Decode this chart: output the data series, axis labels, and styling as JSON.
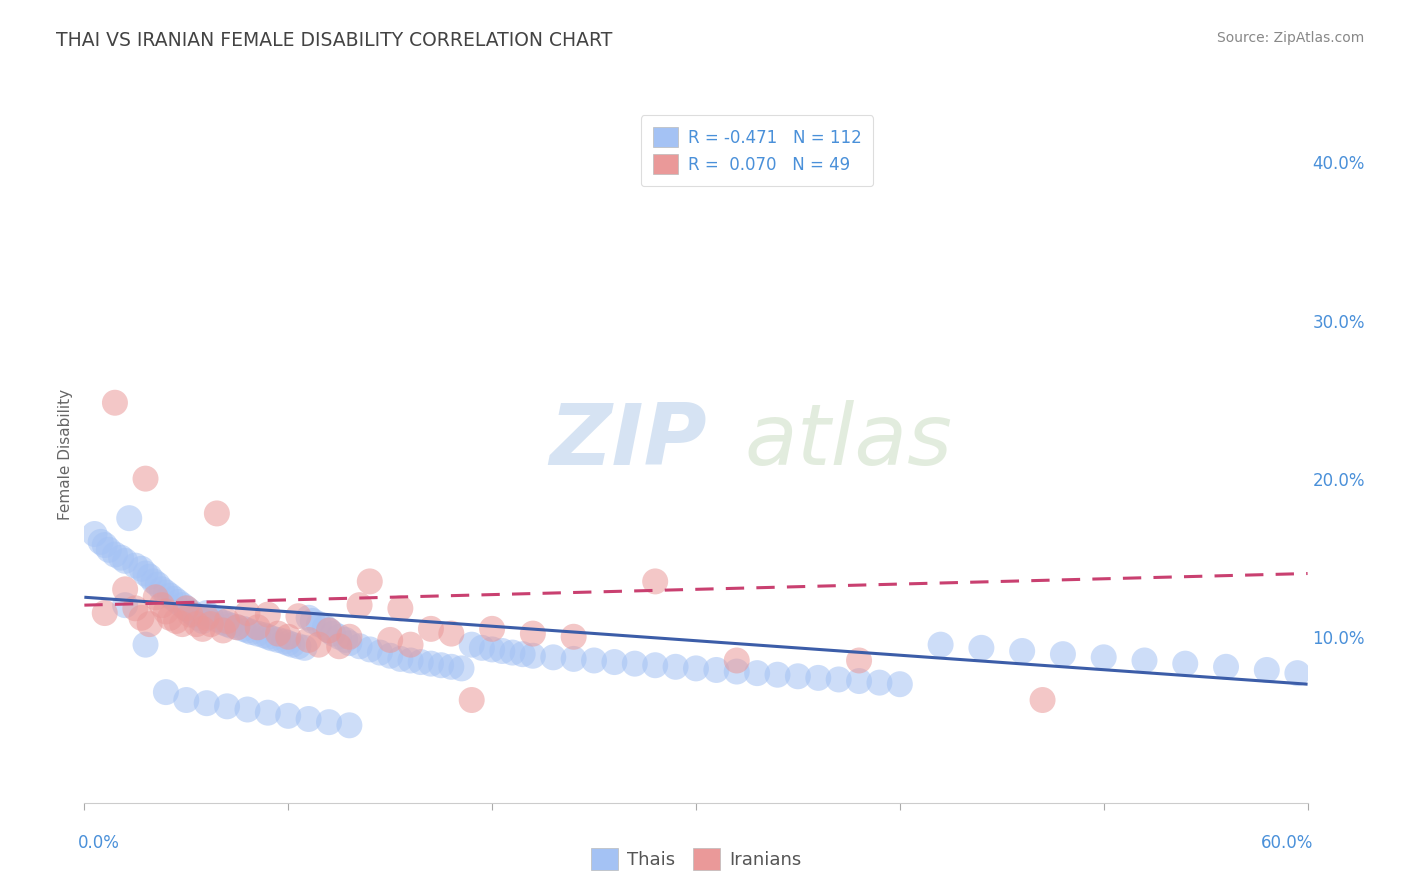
{
  "title": "THAI VS IRANIAN FEMALE DISABILITY CORRELATION CHART",
  "source_text": "Source: ZipAtlas.com",
  "ylabel": "Female Disability",
  "legend_labels": [
    "Thais",
    "Iranians"
  ],
  "thai_R": -0.471,
  "thai_N": 112,
  "iranian_R": 0.07,
  "iranian_N": 49,
  "xlim": [
    0.0,
    0.6
  ],
  "ylim": [
    -0.005,
    0.435
  ],
  "xtick_positions": [
    0.0,
    0.6
  ],
  "xtick_labels": [
    "0.0%",
    "60.0%"
  ],
  "yticks_right": [
    0.1,
    0.2,
    0.3,
    0.4
  ],
  "ytick_labels_right": [
    "10.0%",
    "20.0%",
    "30.0%",
    "40.0%"
  ],
  "thai_color": "#a4c2f4",
  "iranian_color": "#ea9999",
  "thai_line_color": "#3c5da8",
  "iranian_line_color": "#c94070",
  "background_color": "#ffffff",
  "grid_color": "#cccccc",
  "watermark_zip": "ZIP",
  "watermark_atlas": "atlas",
  "title_color": "#434343",
  "source_color": "#888888",
  "axis_label_color": "#666666",
  "tick_label_color": "#4a90d9",
  "bottom_legend_label_color": "#555555",
  "thai_scatter_x": [
    0.005,
    0.008,
    0.01,
    0.012,
    0.015,
    0.018,
    0.02,
    0.022,
    0.025,
    0.028,
    0.03,
    0.032,
    0.034,
    0.036,
    0.038,
    0.04,
    0.042,
    0.044,
    0.046,
    0.048,
    0.05,
    0.052,
    0.054,
    0.056,
    0.058,
    0.06,
    0.062,
    0.065,
    0.068,
    0.07,
    0.072,
    0.075,
    0.078,
    0.08,
    0.082,
    0.085,
    0.088,
    0.09,
    0.092,
    0.095,
    0.098,
    0.1,
    0.102,
    0.105,
    0.108,
    0.11,
    0.112,
    0.115,
    0.118,
    0.12,
    0.122,
    0.125,
    0.128,
    0.13,
    0.135,
    0.14,
    0.145,
    0.15,
    0.155,
    0.16,
    0.165,
    0.17,
    0.175,
    0.18,
    0.185,
    0.19,
    0.195,
    0.2,
    0.205,
    0.21,
    0.215,
    0.22,
    0.23,
    0.24,
    0.25,
    0.26,
    0.27,
    0.28,
    0.29,
    0.3,
    0.31,
    0.32,
    0.33,
    0.34,
    0.35,
    0.36,
    0.37,
    0.38,
    0.39,
    0.4,
    0.42,
    0.44,
    0.46,
    0.48,
    0.5,
    0.52,
    0.54,
    0.56,
    0.58,
    0.595,
    0.02,
    0.03,
    0.04,
    0.05,
    0.06,
    0.07,
    0.08,
    0.09,
    0.1,
    0.11,
    0.12,
    0.13
  ],
  "thai_scatter_y": [
    0.165,
    0.16,
    0.158,
    0.155,
    0.152,
    0.15,
    0.148,
    0.175,
    0.145,
    0.143,
    0.14,
    0.138,
    0.135,
    0.133,
    0.13,
    0.128,
    0.126,
    0.124,
    0.122,
    0.12,
    0.118,
    0.116,
    0.114,
    0.112,
    0.11,
    0.115,
    0.113,
    0.111,
    0.109,
    0.108,
    0.107,
    0.106,
    0.105,
    0.104,
    0.103,
    0.102,
    0.101,
    0.1,
    0.099,
    0.098,
    0.097,
    0.096,
    0.095,
    0.094,
    0.093,
    0.112,
    0.11,
    0.108,
    0.106,
    0.104,
    0.102,
    0.1,
    0.098,
    0.096,
    0.094,
    0.092,
    0.09,
    0.088,
    0.086,
    0.085,
    0.084,
    0.083,
    0.082,
    0.081,
    0.08,
    0.095,
    0.093,
    0.092,
    0.091,
    0.09,
    0.089,
    0.088,
    0.087,
    0.086,
    0.085,
    0.084,
    0.083,
    0.082,
    0.081,
    0.08,
    0.079,
    0.078,
    0.077,
    0.076,
    0.075,
    0.074,
    0.073,
    0.072,
    0.071,
    0.07,
    0.095,
    0.093,
    0.091,
    0.089,
    0.087,
    0.085,
    0.083,
    0.081,
    0.079,
    0.077,
    0.12,
    0.095,
    0.065,
    0.06,
    0.058,
    0.056,
    0.054,
    0.052,
    0.05,
    0.048,
    0.046,
    0.044
  ],
  "iranian_scatter_x": [
    0.01,
    0.015,
    0.02,
    0.025,
    0.028,
    0.03,
    0.032,
    0.035,
    0.038,
    0.04,
    0.042,
    0.045,
    0.048,
    0.05,
    0.052,
    0.055,
    0.058,
    0.06,
    0.062,
    0.065,
    0.068,
    0.07,
    0.075,
    0.08,
    0.085,
    0.09,
    0.095,
    0.1,
    0.105,
    0.11,
    0.115,
    0.12,
    0.125,
    0.13,
    0.135,
    0.14,
    0.15,
    0.155,
    0.16,
    0.17,
    0.18,
    0.19,
    0.2,
    0.22,
    0.24,
    0.28,
    0.32,
    0.38,
    0.47
  ],
  "iranian_scatter_y": [
    0.115,
    0.248,
    0.13,
    0.118,
    0.112,
    0.2,
    0.108,
    0.125,
    0.12,
    0.116,
    0.112,
    0.11,
    0.108,
    0.118,
    0.114,
    0.108,
    0.105,
    0.112,
    0.108,
    0.178,
    0.104,
    0.11,
    0.106,
    0.115,
    0.106,
    0.114,
    0.102,
    0.1,
    0.113,
    0.098,
    0.095,
    0.104,
    0.094,
    0.1,
    0.12,
    0.135,
    0.098,
    0.118,
    0.095,
    0.105,
    0.102,
    0.06,
    0.105,
    0.102,
    0.1,
    0.135,
    0.085,
    0.085,
    0.06
  ]
}
